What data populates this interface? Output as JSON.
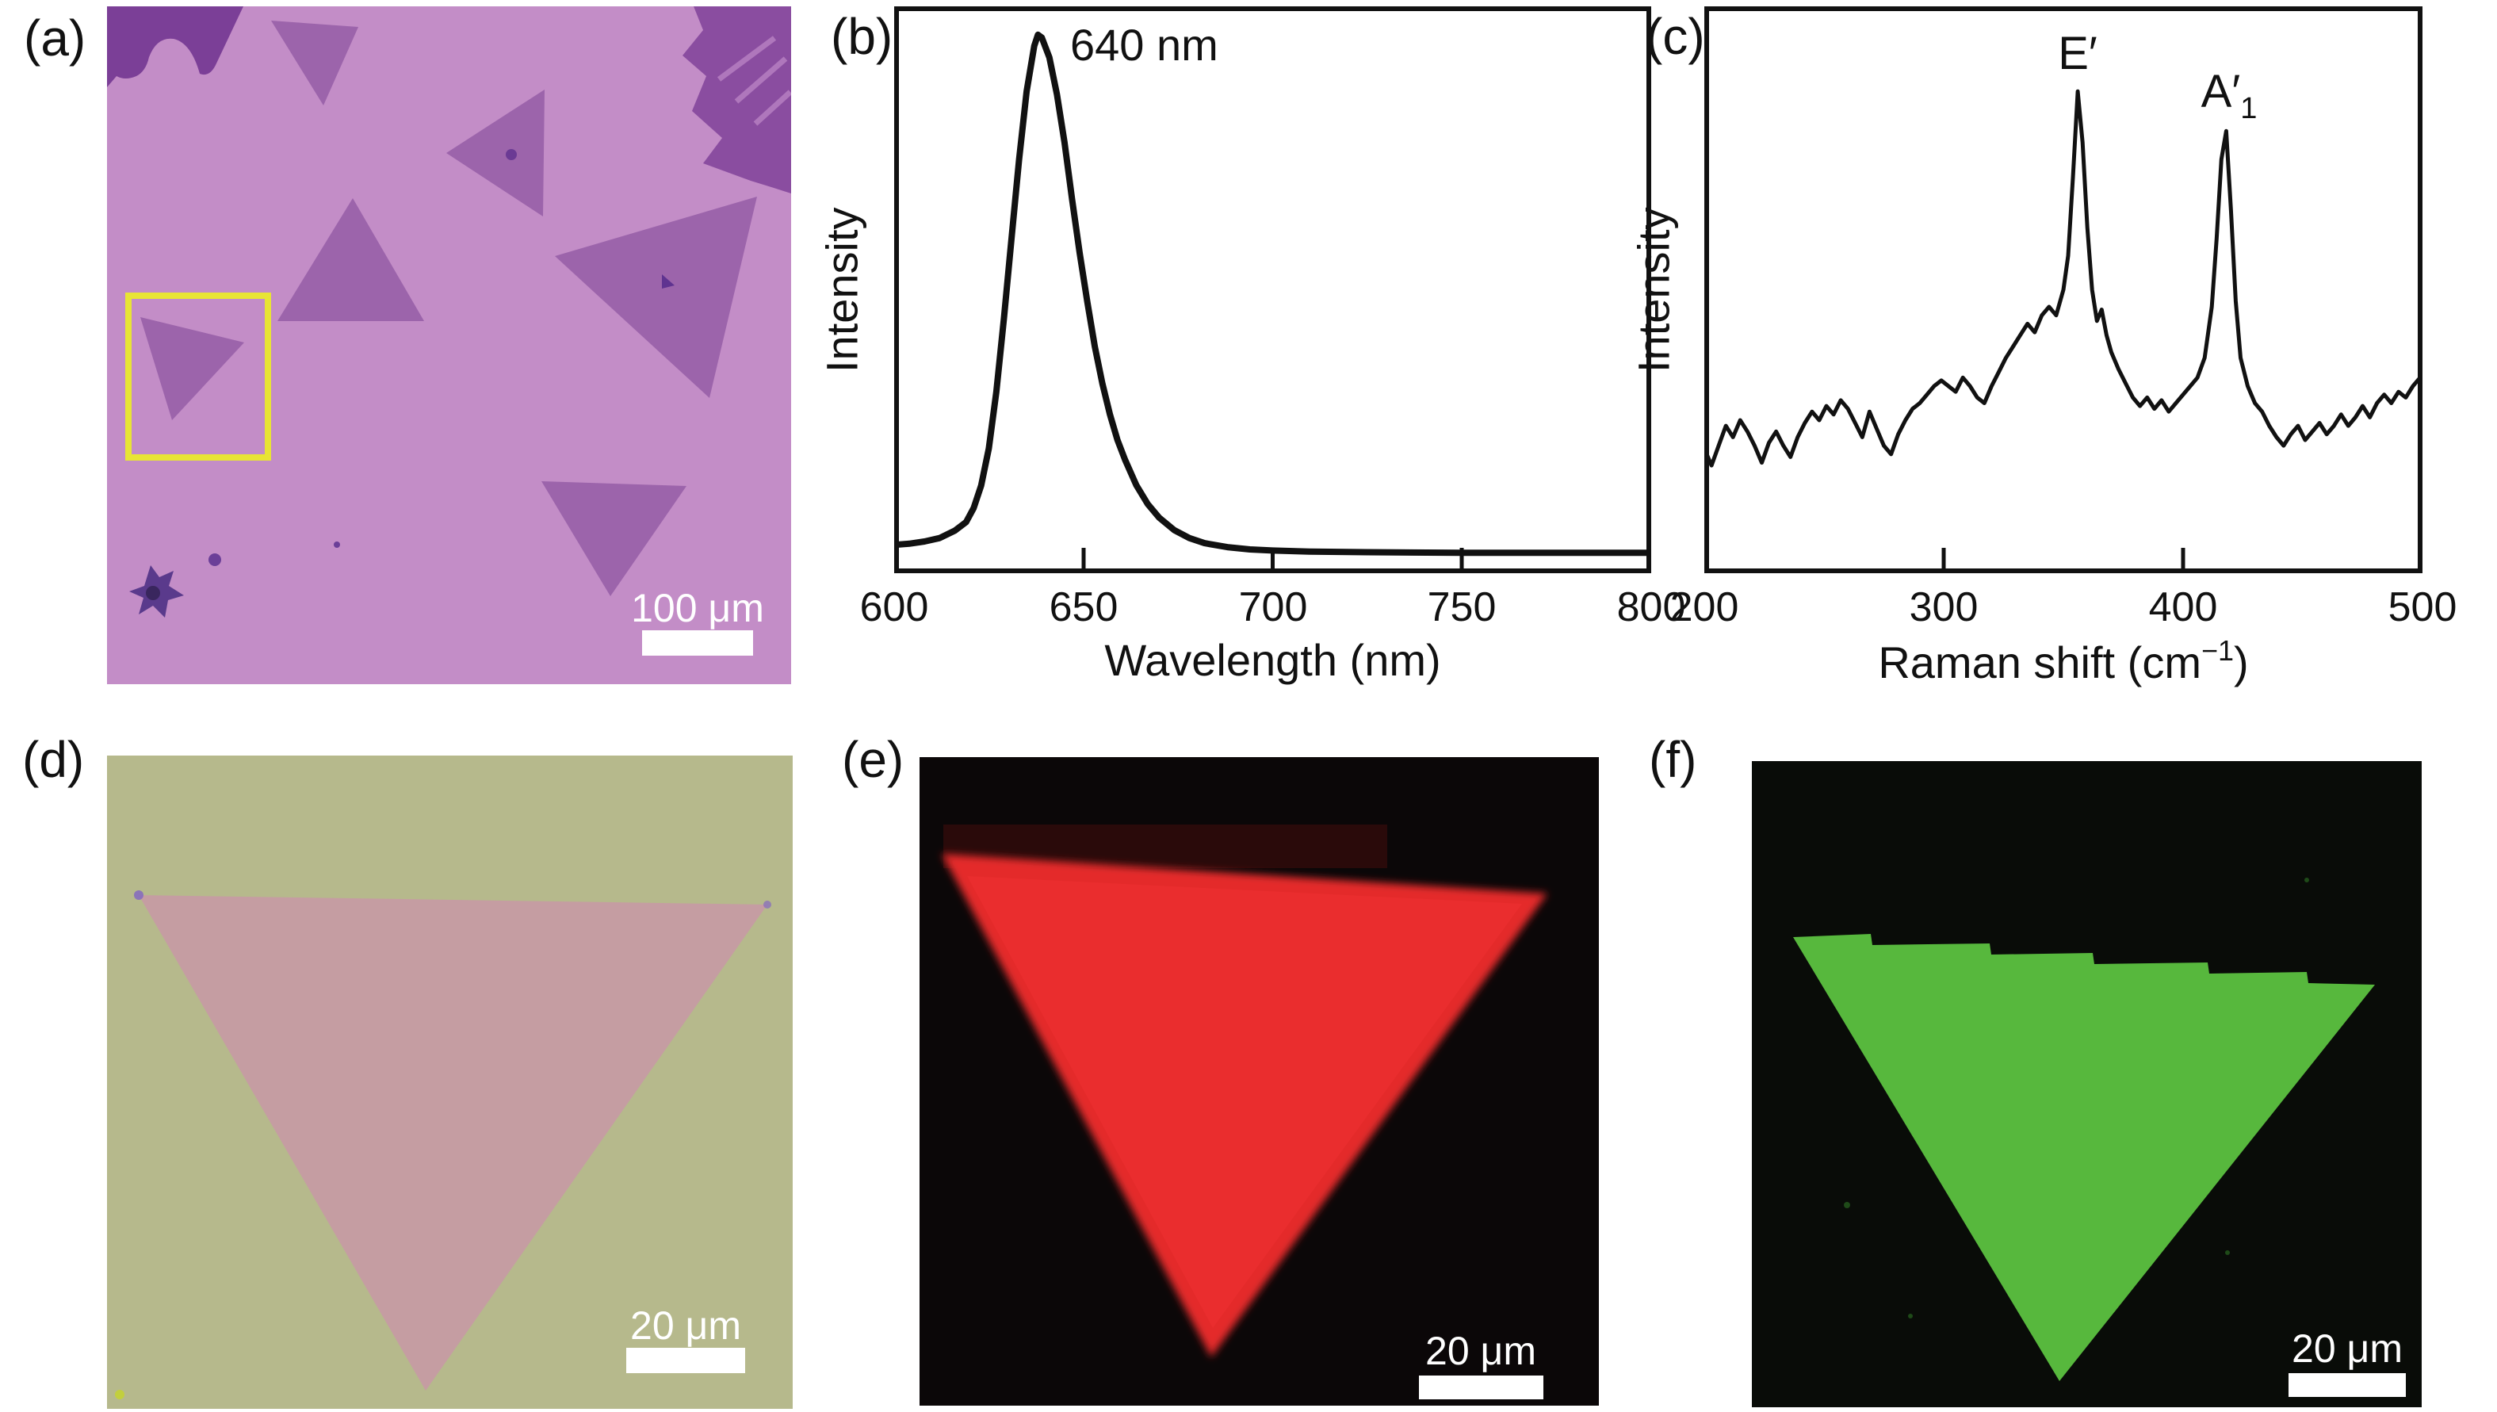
{
  "figure": {
    "description": "Six-panel figure: optical image of triangular monolayer flakes, PL spectrum, Raman spectrum, optical image of single triangle, PL intensity map, Raman intensity map",
    "panels": {
      "a": {
        "label": "(a)",
        "type": "optical-microscopy-image",
        "scale_bar_label": "100 μm"
      },
      "b": {
        "label": "(b)",
        "type": "pl-spectrum",
        "peak_annotation": "640 nm"
      },
      "c": {
        "label": "(c)",
        "type": "raman-spectrum"
      },
      "d": {
        "label": "(d)",
        "type": "optical-image-single-flake",
        "scale_bar_label": "20 μm"
      },
      "e": {
        "label": "(e)",
        "type": "pl-intensity-map",
        "scale_bar_label": "20 μm"
      },
      "f": {
        "label": "(f)",
        "type": "raman-intensity-map",
        "scale_bar_label": "20 μm"
      }
    }
  },
  "chart_data": [
    {
      "type": "line",
      "panel": "b",
      "title": "",
      "xlabel": "Wavelength (nm)",
      "ylabel": "Intensity",
      "xlim": [
        600,
        800
      ],
      "ylim": [
        0,
        1
      ],
      "grid": false,
      "xticks": [
        "600",
        "650",
        "700",
        "750",
        "800"
      ],
      "annotation": "640 nm",
      "peak_wavelength_nm": 640,
      "points": [
        [
          600,
          0.05
        ],
        [
          604,
          0.052
        ],
        [
          608,
          0.056
        ],
        [
          612,
          0.062
        ],
        [
          616,
          0.075
        ],
        [
          619,
          0.09
        ],
        [
          621,
          0.115
        ],
        [
          623,
          0.155
        ],
        [
          625,
          0.22
        ],
        [
          627,
          0.32
        ],
        [
          629,
          0.45
        ],
        [
          631,
          0.59
        ],
        [
          633,
          0.73
        ],
        [
          635,
          0.85
        ],
        [
          637,
          0.93
        ],
        [
          638,
          0.95
        ],
        [
          639,
          0.945
        ],
        [
          641,
          0.91
        ],
        [
          643,
          0.845
        ],
        [
          645,
          0.76
        ],
        [
          647,
          0.66
        ],
        [
          649,
          0.565
        ],
        [
          651,
          0.48
        ],
        [
          653,
          0.4
        ],
        [
          655,
          0.335
        ],
        [
          657,
          0.28
        ],
        [
          659,
          0.235
        ],
        [
          661,
          0.2
        ],
        [
          664,
          0.155
        ],
        [
          667,
          0.122
        ],
        [
          670,
          0.098
        ],
        [
          674,
          0.076
        ],
        [
          678,
          0.062
        ],
        [
          682,
          0.053
        ],
        [
          688,
          0.046
        ],
        [
          694,
          0.042
        ],
        [
          700,
          0.04
        ],
        [
          710,
          0.038
        ],
        [
          725,
          0.037
        ],
        [
          750,
          0.036
        ],
        [
          800,
          0.036
        ]
      ]
    },
    {
      "type": "line",
      "panel": "c",
      "title": "",
      "xlabel": "Raman shift (cm−1)",
      "xlabel_pre": "Raman shift (cm",
      "xlabel_sup": "−1",
      "xlabel_post": ")",
      "ylabel": "Intensity",
      "xlim": [
        200,
        500
      ],
      "ylim": [
        0,
        1
      ],
      "grid": false,
      "xticks": [
        "200",
        "300",
        "400",
        "500"
      ],
      "peaks": [
        {
          "label": "E′",
          "shift_cm1": 356
        },
        {
          "label": "A′1",
          "label_main": "A′",
          "label_sub": "1",
          "shift_cm1": 418
        }
      ],
      "points": [
        [
          200,
          0.22
        ],
        [
          203,
          0.19
        ],
        [
          206,
          0.225
        ],
        [
          209,
          0.26
        ],
        [
          212,
          0.24
        ],
        [
          215,
          0.27
        ],
        [
          218,
          0.25
        ],
        [
          221,
          0.225
        ],
        [
          224,
          0.195
        ],
        [
          227,
          0.23
        ],
        [
          230,
          0.25
        ],
        [
          233,
          0.225
        ],
        [
          236,
          0.205
        ],
        [
          239,
          0.24
        ],
        [
          242,
          0.265
        ],
        [
          245,
          0.285
        ],
        [
          248,
          0.27
        ],
        [
          251,
          0.295
        ],
        [
          254,
          0.28
        ],
        [
          257,
          0.305
        ],
        [
          260,
          0.29
        ],
        [
          263,
          0.265
        ],
        [
          266,
          0.24
        ],
        [
          269,
          0.285
        ],
        [
          272,
          0.255
        ],
        [
          275,
          0.225
        ],
        [
          278,
          0.21
        ],
        [
          281,
          0.245
        ],
        [
          284,
          0.27
        ],
        [
          287,
          0.29
        ],
        [
          290,
          0.3
        ],
        [
          293,
          0.315
        ],
        [
          296,
          0.33
        ],
        [
          299,
          0.34
        ],
        [
          302,
          0.33
        ],
        [
          305,
          0.32
        ],
        [
          308,
          0.345
        ],
        [
          311,
          0.33
        ],
        [
          314,
          0.31
        ],
        [
          317,
          0.3
        ],
        [
          320,
          0.33
        ],
        [
          323,
          0.355
        ],
        [
          326,
          0.38
        ],
        [
          329,
          0.4
        ],
        [
          332,
          0.42
        ],
        [
          335,
          0.44
        ],
        [
          338,
          0.425
        ],
        [
          341,
          0.455
        ],
        [
          344,
          0.47
        ],
        [
          347,
          0.455
        ],
        [
          350,
          0.5
        ],
        [
          352,
          0.56
        ],
        [
          354,
          0.7
        ],
        [
          356,
          0.85
        ],
        [
          358,
          0.76
        ],
        [
          360,
          0.61
        ],
        [
          362,
          0.5
        ],
        [
          364,
          0.445
        ],
        [
          366,
          0.465
        ],
        [
          368,
          0.42
        ],
        [
          370,
          0.39
        ],
        [
          373,
          0.36
        ],
        [
          376,
          0.335
        ],
        [
          379,
          0.31
        ],
        [
          382,
          0.295
        ],
        [
          385,
          0.31
        ],
        [
          388,
          0.29
        ],
        [
          391,
          0.305
        ],
        [
          394,
          0.285
        ],
        [
          397,
          0.3
        ],
        [
          400,
          0.315
        ],
        [
          403,
          0.33
        ],
        [
          406,
          0.345
        ],
        [
          409,
          0.38
        ],
        [
          412,
          0.47
        ],
        [
          414,
          0.59
        ],
        [
          416,
          0.73
        ],
        [
          418,
          0.78
        ],
        [
          420,
          0.64
        ],
        [
          422,
          0.48
        ],
        [
          424,
          0.38
        ],
        [
          427,
          0.33
        ],
        [
          430,
          0.3
        ],
        [
          433,
          0.285
        ],
        [
          436,
          0.26
        ],
        [
          439,
          0.24
        ],
        [
          442,
          0.225
        ],
        [
          445,
          0.245
        ],
        [
          448,
          0.26
        ],
        [
          451,
          0.235
        ],
        [
          454,
          0.25
        ],
        [
          457,
          0.265
        ],
        [
          460,
          0.245
        ],
        [
          463,
          0.26
        ],
        [
          466,
          0.28
        ],
        [
          469,
          0.26
        ],
        [
          472,
          0.275
        ],
        [
          475,
          0.295
        ],
        [
          478,
          0.275
        ],
        [
          481,
          0.3
        ],
        [
          484,
          0.315
        ],
        [
          487,
          0.3
        ],
        [
          490,
          0.32
        ],
        [
          493,
          0.31
        ],
        [
          496,
          0.33
        ],
        [
          499,
          0.345
        ]
      ]
    }
  ],
  "colors": {
    "optical_background": "#c38dc7",
    "flake": "#9c64ab",
    "dark_flake_region": "#7b3f97",
    "dark_flake_region2": "#8a4da0",
    "highlight_box": "#e8e435",
    "optical_d_background": "#b6b98c",
    "optical_d_triangle": "#c59da2",
    "pl_map_background": "#0b0708",
    "pl_map_triangle": "#e42b2c",
    "raman_map_background": "#090c08",
    "raman_map_triangle": "#57b83d",
    "curve": "#111111",
    "scale_bar": "#ffffff"
  }
}
